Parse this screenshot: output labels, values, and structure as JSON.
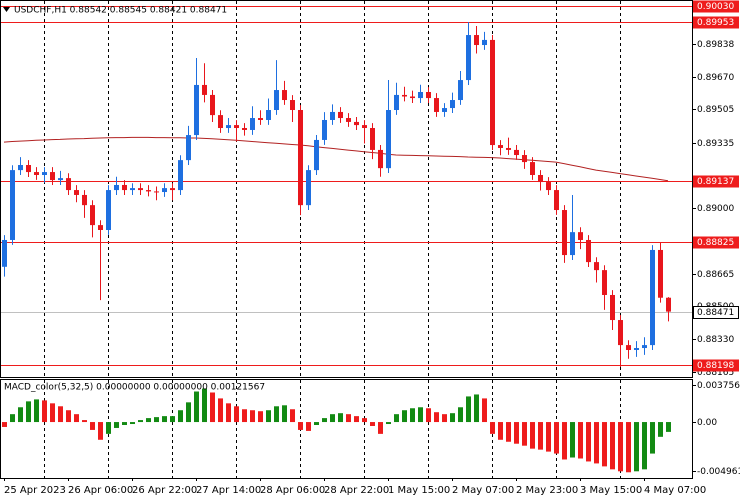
{
  "chart_data": [
    {
      "type": "candlestick",
      "title": "USDCHF,H1 0.88542 0.88545 0.88421 0.88471",
      "categories": [
        "25 Apr 2023",
        null,
        null,
        null,
        null,
        null,
        null,
        null,
        "26 Apr 06:00",
        null,
        null,
        null,
        null,
        null,
        null,
        null,
        "26 Apr 22:00",
        null,
        null,
        null,
        null,
        null,
        null,
        null,
        "27 Apr 14:00",
        null,
        null,
        null,
        null,
        null,
        null,
        null,
        "28 Apr 06:00",
        null,
        null,
        null,
        null,
        null,
        null,
        null,
        "28 Apr 22:00",
        null,
        null,
        null,
        null,
        null,
        null,
        null,
        "1 May 15:00",
        null,
        null,
        null,
        null,
        null,
        null,
        null,
        "2 May 07:00",
        null,
        null,
        null,
        null,
        null,
        null,
        null,
        "2 May 23:00",
        null,
        null,
        null,
        null,
        null,
        null,
        null,
        "3 May 15:00",
        null,
        null,
        null,
        null,
        null,
        null,
        null,
        "4 May 07:00",
        null,
        null,
        null
      ],
      "open": [
        0.887,
        0.88837,
        0.89194,
        0.8922,
        0.89184,
        0.89169,
        0.89184,
        0.89143,
        0.89153,
        0.89092,
        0.89067,
        0.89015,
        0.88913,
        0.88888,
        0.89092,
        0.89118,
        0.89092,
        0.89102,
        0.89092,
        0.89085,
        0.89082,
        0.89102,
        0.89092,
        0.89245,
        0.89373,
        0.89629,
        0.89578,
        0.89475,
        0.89409,
        0.89424,
        0.89409,
        0.89399,
        0.8946,
        0.8945,
        0.89501,
        0.89603,
        0.89552,
        0.89501,
        0.89015,
        0.89194,
        0.89348,
        0.8945,
        0.89491,
        0.8946,
        0.8944,
        0.89424,
        0.89409,
        0.89297,
        0.89204,
        0.89501,
        0.89578,
        0.8957,
        0.89562,
        0.89593,
        0.89562,
        0.89491,
        0.89511,
        0.89552,
        0.89654,
        0.89884,
        0.89833,
        0.89859,
        0.89322,
        0.89307,
        0.89297,
        0.89271,
        0.89235,
        0.89169,
        0.89133,
        0.89092,
        0.8899,
        0.8876,
        0.88877,
        0.88837,
        0.88724,
        0.88683,
        0.88556,
        0.88428,
        0.883,
        0.88275,
        0.88285,
        0.883,
        0.88786,
        0.88542
      ],
      "high": [
        0.88862,
        0.89219,
        0.8926,
        0.89245,
        0.89209,
        0.89209,
        0.89209,
        0.8919,
        0.89178,
        0.89117,
        0.89092,
        0.8904,
        0.88938,
        0.89117,
        0.8916,
        0.89143,
        0.89127,
        0.89127,
        0.89117,
        0.8911,
        0.89127,
        0.89127,
        0.8927,
        0.8942,
        0.89767,
        0.8974,
        0.89603,
        0.895,
        0.8946,
        0.89449,
        0.89434,
        0.8952,
        0.895,
        0.8956,
        0.89756,
        0.8965,
        0.89577,
        0.89526,
        0.89219,
        0.89373,
        0.8949,
        0.8953,
        0.89516,
        0.89485,
        0.89465,
        0.89449,
        0.89434,
        0.89322,
        0.89654,
        0.8964,
        0.8962,
        0.896,
        0.8963,
        0.89618,
        0.89587,
        0.89536,
        0.8959,
        0.897,
        0.8995,
        0.8993,
        0.899,
        0.89884,
        0.89347,
        0.8936,
        0.89322,
        0.89296,
        0.8926,
        0.89194,
        0.89158,
        0.89117,
        0.89015,
        0.89067,
        0.88902,
        0.88862,
        0.88749,
        0.88708,
        0.88581,
        0.88453,
        0.88325,
        0.8832,
        0.8834,
        0.88811,
        0.88825,
        0.88545
      ],
      "low": [
        0.8865,
        0.88812,
        0.89169,
        0.89159,
        0.89144,
        0.8913,
        0.89118,
        0.89118,
        0.89067,
        0.8903,
        0.8895,
        0.8885,
        0.8853,
        0.88863,
        0.89067,
        0.89067,
        0.89067,
        0.89067,
        0.8906,
        0.8904,
        0.89057,
        0.8904,
        0.89067,
        0.8922,
        0.89348,
        0.8954,
        0.8944,
        0.89384,
        0.89384,
        0.8934,
        0.8937,
        0.89374,
        0.89425,
        0.89425,
        0.89476,
        0.89527,
        0.8944,
        0.88964,
        0.8899,
        0.89169,
        0.89323,
        0.89425,
        0.89435,
        0.89415,
        0.89399,
        0.8933,
        0.8925,
        0.8916,
        0.89179,
        0.89476,
        0.89545,
        0.89537,
        0.89537,
        0.89537,
        0.89466,
        0.89466,
        0.89486,
        0.89527,
        0.89629,
        0.8979,
        0.89808,
        0.89297,
        0.8927,
        0.89272,
        0.89246,
        0.892,
        0.89144,
        0.8909,
        0.89067,
        0.88965,
        0.8872,
        0.88735,
        0.8879,
        0.88699,
        0.8862,
        0.8848,
        0.88377,
        0.88188,
        0.8823,
        0.8824,
        0.8825,
        0.88275,
        0.88517,
        0.88421
      ],
      "close": [
        0.88837,
        0.89194,
        0.8922,
        0.89184,
        0.89169,
        0.89184,
        0.89143,
        0.89153,
        0.89092,
        0.89067,
        0.89015,
        0.88913,
        0.88888,
        0.89092,
        0.89118,
        0.89092,
        0.89102,
        0.89092,
        0.89085,
        0.89082,
        0.89102,
        0.89092,
        0.89245,
        0.89373,
        0.89629,
        0.89578,
        0.89475,
        0.89409,
        0.89424,
        0.89409,
        0.89399,
        0.8946,
        0.8945,
        0.89501,
        0.89603,
        0.89552,
        0.89501,
        0.89015,
        0.89194,
        0.89348,
        0.8945,
        0.89491,
        0.8946,
        0.8944,
        0.89424,
        0.89409,
        0.89297,
        0.89204,
        0.89501,
        0.89578,
        0.8957,
        0.89562,
        0.89593,
        0.89562,
        0.89491,
        0.89511,
        0.89552,
        0.89654,
        0.89884,
        0.89833,
        0.89859,
        0.89322,
        0.89307,
        0.89297,
        0.89271,
        0.89235,
        0.89169,
        0.89133,
        0.89092,
        0.8899,
        0.8876,
        0.88877,
        0.88837,
        0.88724,
        0.88683,
        0.88556,
        0.88428,
        0.883,
        0.88275,
        0.88285,
        0.883,
        0.88786,
        0.88542,
        0.88471
      ],
      "ma_values": [
        0.89337,
        0.8934,
        0.89342,
        0.89344,
        0.89346,
        0.89348,
        0.8935,
        0.89351,
        0.89353,
        0.89354,
        0.89355,
        0.89357,
        0.89358,
        0.89359,
        0.8936,
        0.8936,
        0.89361,
        0.89361,
        0.89361,
        0.8936,
        0.8936,
        0.89359,
        0.89359,
        0.89358,
        0.89358,
        0.89356,
        0.89354,
        0.89352,
        0.89349,
        0.89346,
        0.89343,
        0.8934,
        0.89337,
        0.89334,
        0.89331,
        0.89328,
        0.89325,
        0.89322,
        0.89318,
        0.89313,
        0.89309,
        0.89305,
        0.89301,
        0.89296,
        0.89292,
        0.89288,
        0.89284,
        0.8928,
        0.89275,
        0.89271,
        0.8927,
        0.89269,
        0.89268,
        0.89267,
        0.89266,
        0.89265,
        0.89264,
        0.89263,
        0.89261,
        0.8926,
        0.89259,
        0.89258,
        0.89256,
        0.89253,
        0.8925,
        0.89247,
        0.89244,
        0.89241,
        0.89238,
        0.89235,
        0.89227,
        0.89219,
        0.89211,
        0.89202,
        0.89194,
        0.89188,
        0.89182,
        0.89176,
        0.8917,
        0.89164,
        0.89158,
        0.89152,
        0.89146,
        0.8914
      ],
      "ma_color": "#b22222",
      "up_color": "#1e6fe0",
      "down_color": "#e8161c",
      "ylim": [
        0.88137,
        0.90063
      ],
      "yticks": [
        0.89838,
        {
          "value": 0.8967,
          "label": "0.89670"
        },
        0.89505,
        0.89335,
        {
          "value": 0.89,
          "label": "0.89000"
        },
        0.88665,
        {
          "value": 0.885,
          "label": "0.88500"
        },
        {
          "value": 0.8833,
          "label": "0.88330"
        },
        0.88165
      ],
      "levels": [
        {
          "value": 0.9003,
          "label": "0.90030"
        },
        0.89953,
        0.89137,
        0.88825,
        0.88198
      ],
      "level_color": "#ee1c1c",
      "current_price": 0.88471,
      "grid": true
    },
    {
      "type": "bar",
      "title": "MACD_color(5,32,5) 0.00000000 0.00000000 0.00121567",
      "values": [
        -0.0005,
        0.0008,
        0.0015,
        0.0021,
        0.0023,
        0.0022,
        0.0019,
        0.0016,
        0.0012,
        0.0008,
        0.0002,
        -0.0008,
        -0.0018,
        -0.0012,
        -0.0006,
        -0.0003,
        -0.0002,
        0.0002,
        0.0004,
        0.0005,
        0.0006,
        0.0006,
        0.0012,
        0.002,
        0.0031,
        0.0034,
        0.003,
        0.0024,
        0.0019,
        0.0016,
        0.0013,
        0.0012,
        0.0011,
        0.0012,
        0.0016,
        0.0017,
        0.0013,
        -0.0008,
        -0.0009,
        -0.0003,
        0.0004,
        0.0008,
        0.0009,
        0.0008,
        0.0006,
        0.0004,
        -0.0004,
        -0.0012,
        -0.0002,
        0.0008,
        0.0012,
        0.0014,
        0.0015,
        0.0014,
        0.001,
        0.0008,
        0.0009,
        0.0015,
        0.0026,
        0.0028,
        0.0024,
        -0.0012,
        -0.0018,
        -0.002,
        -0.0022,
        -0.0024,
        -0.0027,
        -0.0028,
        -0.003,
        -0.0032,
        -0.0038,
        -0.0036,
        -0.0037,
        -0.004,
        -0.0042,
        -0.0045,
        -0.0048,
        -0.005,
        -0.0051,
        -0.005,
        -0.0048,
        -0.0032,
        -0.0015,
        -0.001
      ],
      "up_color": "#138a13",
      "down_color": "#ee1c1c",
      "ylim": [
        -0.00568,
        0.00437
      ],
      "yticks": [
        0.0037565,
        {
          "value": 0,
          "label": "0.00"
        },
        -0.004961
      ]
    }
  ]
}
